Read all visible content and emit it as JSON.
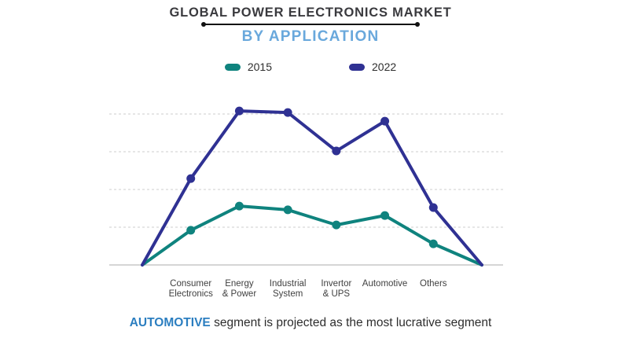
{
  "chart_data": {
    "type": "line",
    "title": "GLOBAL POWER ELECTRONICS MARKET",
    "subtitle": "BY APPLICATION",
    "categories": [
      "Consumer Electronics",
      "Energy & Power",
      "Industrial System",
      "Invertor & UPS",
      "Automotive",
      "Others"
    ],
    "x_tick_labels": [
      "Consumer\nElectronics",
      "Energy\n& Power",
      "Industrial\nSystem",
      "Invertor\n& UPS",
      "Automotive",
      "Others"
    ],
    "series": [
      {
        "name": "2015",
        "color": "#0f837e",
        "values": [
          0.92,
          1.56,
          1.46,
          1.06,
          1.31,
          0.56
        ]
      },
      {
        "name": "2022",
        "color": "#2f3193",
        "values": [
          2.29,
          4.08,
          4.04,
          3.02,
          3.81,
          1.52
        ]
      }
    ],
    "edge_values": {
      "left": 0,
      "right": 0
    },
    "xlabel": "",
    "ylabel": "",
    "ylim": [
      0,
      4.3
    ],
    "y_axis_tick_labels_visible": false,
    "grid": {
      "horizontal_lines_at_values": [
        0,
        1,
        2,
        3,
        4
      ],
      "style": "dashed-light-gray"
    },
    "legend_position": "top-center"
  },
  "colors": {
    "title": "#3a3a3e",
    "subtitle": "#69a8dc",
    "series_2015": "#0f837e",
    "series_2022": "#2f3193",
    "gridline": "#cdcdcd",
    "baseline": "#ababab",
    "note_highlight": "#2b7ec0"
  },
  "note": {
    "highlight": "AUTOMOTIVE",
    "rest": " segment is projected as the most lucrative segment"
  }
}
